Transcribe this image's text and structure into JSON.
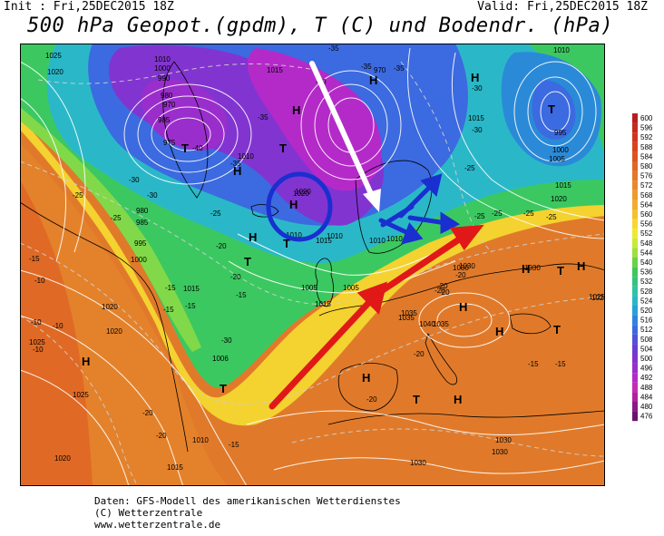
{
  "header": {
    "init": "Init : Fri,25DEC2015 18Z",
    "valid": "Valid: Fri,25DEC2015 18Z",
    "title": "500 hPa Geopot.(gpdm), T (C) und Bodendr. (hPa)"
  },
  "footer": {
    "line1": "Daten: GFS-Modell des amerikanischen Wetterdienstes",
    "line2": "(C) Wetterzentrale",
    "line3": "www.wetterzentrale.de"
  },
  "legend": {
    "values": [
      "600",
      "596",
      "592",
      "588",
      "584",
      "580",
      "576",
      "572",
      "568",
      "564",
      "560",
      "556",
      "552",
      "548",
      "544",
      "540",
      "536",
      "532",
      "528",
      "524",
      "520",
      "516",
      "512",
      "508",
      "504",
      "500",
      "496",
      "492",
      "488",
      "484",
      "480",
      "476"
    ],
    "colors": [
      "#b81e1e",
      "#c62a1e",
      "#d0361e",
      "#d8441e",
      "#de5420",
      "#e26624",
      "#e67628",
      "#ea882c",
      "#ee9a30",
      "#f2ac30",
      "#f6c030",
      "#f8d830",
      "#eeea30",
      "#c8ea38",
      "#9ee040",
      "#6cd248",
      "#40c858",
      "#34c47c",
      "#30c4a4",
      "#2ab8c8",
      "#2aa0d8",
      "#3084e0",
      "#3c6ae0",
      "#5252d8",
      "#6a3ed4",
      "#8234d0",
      "#9a2ecc",
      "#b42ac8",
      "#c82ab4",
      "#b0229c",
      "#8a1a86",
      "#6a1472"
    ]
  },
  "map": {
    "pressure_labels": [
      "1025",
      "1020",
      "1010",
      "1000",
      "990",
      "980",
      "970",
      "985",
      "975",
      "1015",
      "1005",
      "1030",
      "1035",
      "1040",
      "1025",
      "1020",
      "1015",
      "1010",
      "1005",
      "1000",
      "995",
      "985",
      "980",
      "970",
      "1020",
      "1015",
      "1010",
      "1005",
      "1000",
      "995",
      "1025",
      "1020",
      "1015",
      "1010",
      "1015",
      "1020",
      "1025",
      "1030",
      "1030",
      "1035",
      "1035",
      "1030",
      "1025",
      "1010",
      "1006",
      "1030",
      "1010",
      "1020",
      "1015",
      "1010",
      "1015",
      "1010",
      "1030"
    ],
    "temperature_labels": [
      "-40",
      "-35",
      "-30",
      "-25",
      "-20",
      "-15",
      "-10",
      "-35",
      "-30",
      "-25",
      "-20",
      "-15",
      "-10",
      "-10",
      "-15",
      "-20",
      "-25",
      "-30",
      "-35",
      "-30",
      "-35",
      "-25",
      "-20",
      "-15",
      "-20",
      "-25",
      "-30",
      "-15",
      "-20",
      "-25",
      "-20",
      "-15",
      "-10",
      "-20",
      "-15",
      "-35",
      "-30",
      "-25",
      "-20",
      "-25",
      "-20",
      "-15"
    ],
    "high_marker": "H",
    "low_marker": "T",
    "circled_high": "1020"
  }
}
